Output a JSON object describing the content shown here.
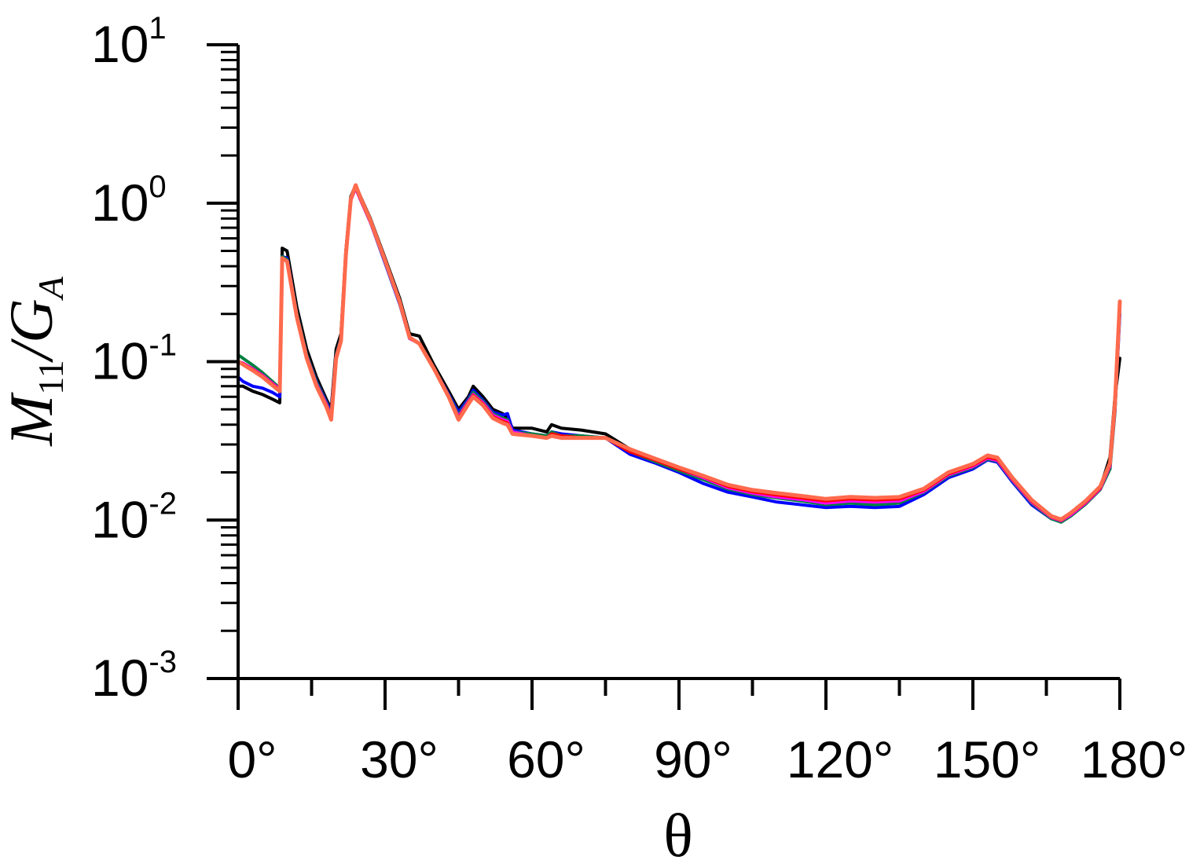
{
  "chart_data": {
    "type": "line",
    "title": "",
    "xlabel": "θ",
    "ylabel": {
      "main": "M",
      "sub1": "11",
      "sep": "/G",
      "sub2": "A"
    },
    "xlim": [
      0,
      180
    ],
    "ylim": [
      0.001,
      10
    ],
    "yscale": "log",
    "x_ticks": [
      {
        "value": 0,
        "label": "0°"
      },
      {
        "value": 30,
        "label": "30°"
      },
      {
        "value": 60,
        "label": "60°"
      },
      {
        "value": 90,
        "label": "90°"
      },
      {
        "value": 120,
        "label": "120°"
      },
      {
        "value": 150,
        "label": "150°"
      },
      {
        "value": 180,
        "label": "180°"
      }
    ],
    "y_ticks": [
      {
        "value": 0.001,
        "base": "10",
        "exp": "-3"
      },
      {
        "value": 0.01,
        "base": "10",
        "exp": "-2"
      },
      {
        "value": 0.1,
        "base": "10",
        "exp": "-1"
      },
      {
        "value": 1,
        "base": "10",
        "exp": "0"
      },
      {
        "value": 10,
        "base": "10",
        "exp": "1"
      }
    ],
    "grid": false,
    "legend": "none",
    "series": [
      {
        "color": "#000000",
        "x": [
          0,
          1,
          3,
          5,
          7,
          8.5,
          9,
          10,
          12,
          14,
          16,
          18,
          19,
          20,
          21,
          22,
          23,
          24,
          25,
          27,
          30,
          33,
          35,
          37,
          40,
          43,
          45,
          47,
          48,
          50,
          52,
          54,
          55,
          56,
          60,
          63,
          64,
          66,
          70,
          75,
          80,
          85,
          90,
          95,
          100,
          105,
          110,
          115,
          120,
          125,
          130,
          135,
          140,
          145,
          150,
          153,
          155,
          158,
          162,
          166,
          168,
          170,
          173,
          176,
          178,
          179,
          180
        ],
        "y": [
          0.07,
          0.07,
          0.065,
          0.062,
          0.058,
          0.055,
          0.52,
          0.5,
          0.22,
          0.12,
          0.08,
          0.058,
          0.05,
          0.12,
          0.15,
          0.5,
          1.1,
          1.3,
          1.1,
          0.8,
          0.45,
          0.25,
          0.15,
          0.145,
          0.095,
          0.065,
          0.05,
          0.06,
          0.07,
          0.06,
          0.05,
          0.047,
          0.044,
          0.038,
          0.038,
          0.036,
          0.04,
          0.038,
          0.037,
          0.035,
          0.028,
          0.024,
          0.021,
          0.019,
          0.016,
          0.015,
          0.014,
          0.0135,
          0.013,
          0.0135,
          0.013,
          0.013,
          0.015,
          0.019,
          0.022,
          0.025,
          0.024,
          0.018,
          0.013,
          0.0103,
          0.01,
          0.011,
          0.013,
          0.016,
          0.025,
          0.06,
          0.105
        ]
      },
      {
        "color": "#0000ff",
        "x": [
          0,
          1,
          3,
          5,
          7,
          8.5,
          9,
          10,
          12,
          14,
          16,
          18,
          19,
          20,
          21,
          22,
          23,
          24,
          25,
          27,
          30,
          33,
          35,
          37,
          40,
          43,
          45,
          47,
          48,
          50,
          52,
          54,
          55,
          56,
          60,
          63,
          64,
          66,
          70,
          75,
          80,
          85,
          90,
          95,
          100,
          105,
          110,
          115,
          120,
          125,
          130,
          135,
          140,
          145,
          150,
          153,
          155,
          158,
          162,
          166,
          168,
          170,
          173,
          176,
          178,
          179,
          180
        ],
        "y": [
          0.08,
          0.075,
          0.07,
          0.068,
          0.064,
          0.06,
          0.46,
          0.45,
          0.2,
          0.11,
          0.075,
          0.056,
          0.048,
          0.11,
          0.14,
          0.48,
          1.05,
          1.25,
          1.05,
          0.76,
          0.42,
          0.23,
          0.14,
          0.13,
          0.09,
          0.062,
          0.048,
          0.058,
          0.066,
          0.057,
          0.048,
          0.046,
          0.047,
          0.037,
          0.035,
          0.034,
          0.036,
          0.035,
          0.034,
          0.033,
          0.026,
          0.023,
          0.02,
          0.017,
          0.015,
          0.014,
          0.013,
          0.0125,
          0.012,
          0.0122,
          0.012,
          0.0122,
          0.0145,
          0.0185,
          0.021,
          0.024,
          0.0232,
          0.0175,
          0.0125,
          0.0102,
          0.0099,
          0.0108,
          0.0128,
          0.0158,
          0.022,
          0.05,
          0.2
        ]
      },
      {
        "color": "#008040",
        "x": [
          0,
          1,
          3,
          5,
          7,
          8.5,
          9,
          10,
          12,
          14,
          16,
          18,
          19,
          20,
          21,
          22,
          23,
          24,
          25,
          27,
          30,
          33,
          35,
          37,
          40,
          43,
          45,
          47,
          48,
          50,
          52,
          54,
          55,
          56,
          60,
          63,
          64,
          66,
          70,
          75,
          80,
          85,
          90,
          95,
          100,
          105,
          110,
          115,
          120,
          125,
          130,
          135,
          140,
          145,
          150,
          153,
          155,
          158,
          162,
          166,
          168,
          170,
          173,
          176,
          178,
          179,
          180
        ],
        "y": [
          0.11,
          0.105,
          0.095,
          0.085,
          0.075,
          0.068,
          0.46,
          0.44,
          0.2,
          0.11,
          0.074,
          0.055,
          0.046,
          0.11,
          0.14,
          0.48,
          1.05,
          1.25,
          1.05,
          0.76,
          0.43,
          0.235,
          0.142,
          0.13,
          0.09,
          0.061,
          0.046,
          0.057,
          0.064,
          0.056,
          0.047,
          0.044,
          0.043,
          0.036,
          0.035,
          0.034,
          0.036,
          0.034,
          0.034,
          0.033,
          0.027,
          0.0235,
          0.0205,
          0.018,
          0.0157,
          0.0145,
          0.0138,
          0.0132,
          0.0125,
          0.0128,
          0.0125,
          0.0128,
          0.015,
          0.019,
          0.0215,
          0.0243,
          0.0236,
          0.0178,
          0.0128,
          0.0102,
          0.0097,
          0.0106,
          0.0126,
          0.0156,
          0.021,
          0.048,
          0.22
        ]
      },
      {
        "color": "#ff00ff",
        "x": [
          0,
          1,
          3,
          5,
          7,
          8.5,
          9,
          10,
          12,
          14,
          16,
          18,
          19,
          20,
          21,
          22,
          23,
          24,
          25,
          27,
          30,
          33,
          35,
          37,
          40,
          43,
          45,
          47,
          48,
          50,
          52,
          54,
          55,
          56,
          60,
          63,
          64,
          66,
          70,
          75,
          80,
          85,
          90,
          95,
          100,
          105,
          110,
          115,
          120,
          125,
          130,
          135,
          140,
          145,
          150,
          153,
          155,
          158,
          162,
          166,
          168,
          170,
          173,
          176,
          178,
          179,
          180
        ],
        "y": [
          0.1,
          0.098,
          0.09,
          0.082,
          0.073,
          0.067,
          0.45,
          0.43,
          0.195,
          0.108,
          0.072,
          0.054,
          0.045,
          0.108,
          0.138,
          0.47,
          1.04,
          1.25,
          1.05,
          0.76,
          0.43,
          0.235,
          0.14,
          0.13,
          0.09,
          0.06,
          0.045,
          0.056,
          0.062,
          0.055,
          0.046,
          0.043,
          0.042,
          0.036,
          0.034,
          0.033,
          0.035,
          0.034,
          0.033,
          0.033,
          0.027,
          0.024,
          0.021,
          0.0185,
          0.016,
          0.0148,
          0.014,
          0.0135,
          0.0128,
          0.0132,
          0.013,
          0.0132,
          0.0152,
          0.0193,
          0.0218,
          0.0246,
          0.0238,
          0.018,
          0.013,
          0.0104,
          0.0099,
          0.0108,
          0.0128,
          0.0158,
          0.022,
          0.05,
          0.23
        ]
      },
      {
        "color": "#ff0000",
        "x": [
          0,
          1,
          3,
          5,
          7,
          8.5,
          9,
          10,
          12,
          14,
          16,
          18,
          19,
          20,
          21,
          22,
          23,
          24,
          25,
          27,
          30,
          33,
          35,
          37,
          40,
          43,
          45,
          47,
          48,
          50,
          52,
          54,
          55,
          56,
          60,
          63,
          64,
          66,
          70,
          75,
          80,
          85,
          90,
          95,
          100,
          105,
          110,
          115,
          120,
          125,
          130,
          135,
          140,
          145,
          150,
          153,
          155,
          158,
          162,
          166,
          168,
          170,
          173,
          176,
          178,
          179,
          180
        ],
        "y": [
          0.1,
          0.097,
          0.089,
          0.081,
          0.072,
          0.066,
          0.45,
          0.43,
          0.195,
          0.107,
          0.071,
          0.053,
          0.044,
          0.107,
          0.137,
          0.47,
          1.05,
          1.27,
          1.06,
          0.77,
          0.43,
          0.236,
          0.141,
          0.13,
          0.09,
          0.06,
          0.044,
          0.055,
          0.061,
          0.054,
          0.045,
          0.042,
          0.041,
          0.035,
          0.034,
          0.033,
          0.035,
          0.034,
          0.033,
          0.033,
          0.027,
          0.024,
          0.021,
          0.0188,
          0.0163,
          0.0151,
          0.0144,
          0.0138,
          0.0132,
          0.0136,
          0.0134,
          0.0136,
          0.0155,
          0.0196,
          0.0222,
          0.025,
          0.0242,
          0.0183,
          0.0132,
          0.0105,
          0.01,
          0.011,
          0.013,
          0.016,
          0.0225,
          0.052,
          0.23
        ]
      },
      {
        "color": "#ff6a4d",
        "x": [
          0,
          1,
          3,
          5,
          7,
          8.5,
          9,
          10,
          12,
          14,
          16,
          18,
          19,
          20,
          21,
          22,
          23,
          24,
          25,
          27,
          30,
          33,
          35,
          37,
          40,
          43,
          45,
          47,
          48,
          50,
          52,
          54,
          55,
          56,
          60,
          63,
          64,
          66,
          70,
          75,
          80,
          85,
          90,
          95,
          100,
          105,
          110,
          115,
          120,
          125,
          130,
          135,
          140,
          145,
          150,
          153,
          155,
          158,
          162,
          166,
          168,
          170,
          173,
          176,
          178,
          179,
          180
        ],
        "y": [
          0.1,
          0.096,
          0.088,
          0.08,
          0.071,
          0.065,
          0.45,
          0.43,
          0.19,
          0.105,
          0.07,
          0.052,
          0.043,
          0.105,
          0.135,
          0.47,
          1.06,
          1.3,
          1.08,
          0.78,
          0.435,
          0.238,
          0.142,
          0.13,
          0.09,
          0.06,
          0.043,
          0.054,
          0.06,
          0.053,
          0.044,
          0.041,
          0.04,
          0.035,
          0.034,
          0.033,
          0.034,
          0.033,
          0.033,
          0.033,
          0.028,
          0.0245,
          0.0215,
          0.019,
          0.0167,
          0.0155,
          0.0148,
          0.0142,
          0.0136,
          0.014,
          0.0138,
          0.014,
          0.0158,
          0.02,
          0.0226,
          0.0256,
          0.0248,
          0.0186,
          0.0134,
          0.0106,
          0.0101,
          0.0111,
          0.0132,
          0.0163,
          0.023,
          0.055,
          0.24
        ]
      }
    ]
  }
}
